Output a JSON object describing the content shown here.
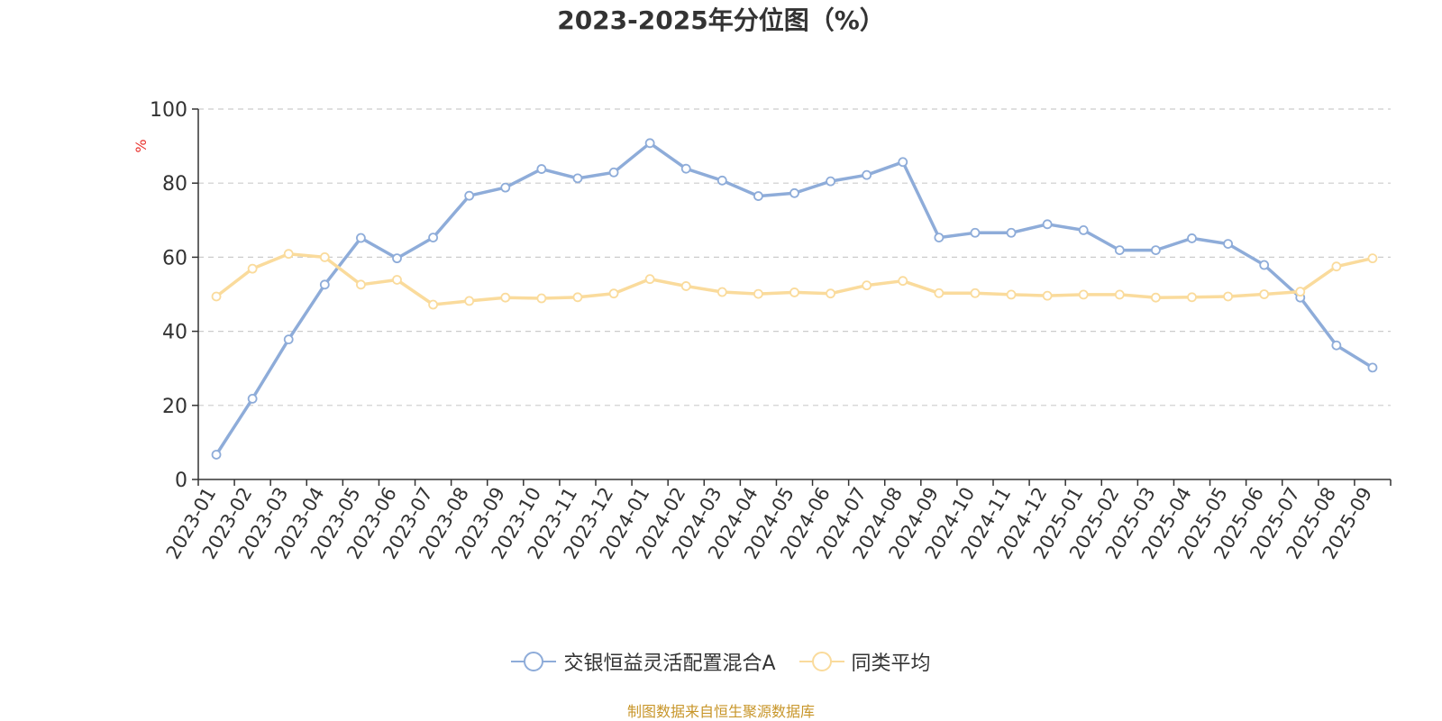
{
  "chart_data": {
    "type": "line",
    "title": "2023-2025年分位图（%）",
    "ylabel": "%",
    "ylim": [
      0,
      100
    ],
    "yticks": [
      0,
      20,
      40,
      60,
      80,
      100
    ],
    "grid": true,
    "legend_position": "bottom",
    "categories": [
      "2023-01",
      "2023-02",
      "2023-03",
      "2023-04",
      "2023-05",
      "2023-06",
      "2023-07",
      "2023-08",
      "2023-09",
      "2023-10",
      "2023-11",
      "2023-12",
      "2024-01",
      "2024-02",
      "2024-03",
      "2024-04",
      "2024-05",
      "2024-06",
      "2024-07",
      "2024-08",
      "2024-09",
      "2024-10",
      "2024-11",
      "2024-12",
      "2025-01",
      "2025-02",
      "2025-03",
      "2025-04",
      "2025-05",
      "2025-06",
      "2025-07",
      "2025-08",
      "2025-09"
    ],
    "series": [
      {
        "name": "交银恒益灵活配置混合A",
        "color": "#8eacd9",
        "values": [
          6.7,
          21.8,
          37.8,
          52.6,
          65.2,
          59.7,
          65.3,
          76.6,
          78.8,
          83.8,
          81.3,
          82.9,
          90.8,
          83.9,
          80.7,
          76.5,
          77.3,
          80.5,
          82.2,
          85.7,
          65.3,
          66.6,
          66.6,
          68.9,
          67.3,
          61.9,
          61.9,
          65.1,
          63.6,
          57.9,
          49.1,
          36.2,
          30.2
        ]
      },
      {
        "name": "同类平均",
        "color": "#fadb9c",
        "values": [
          49.4,
          56.9,
          60.9,
          60.0,
          52.6,
          53.9,
          47.2,
          48.2,
          49.1,
          48.9,
          49.2,
          50.2,
          54.1,
          52.2,
          50.6,
          50.1,
          50.5,
          50.2,
          52.4,
          53.6,
          50.3,
          50.3,
          49.9,
          49.6,
          49.9,
          49.9,
          49.1,
          49.2,
          49.4,
          50.0,
          50.7,
          57.5,
          59.7
        ]
      }
    ]
  },
  "footer": {
    "source": "制图数据来自恒生聚源数据库"
  }
}
